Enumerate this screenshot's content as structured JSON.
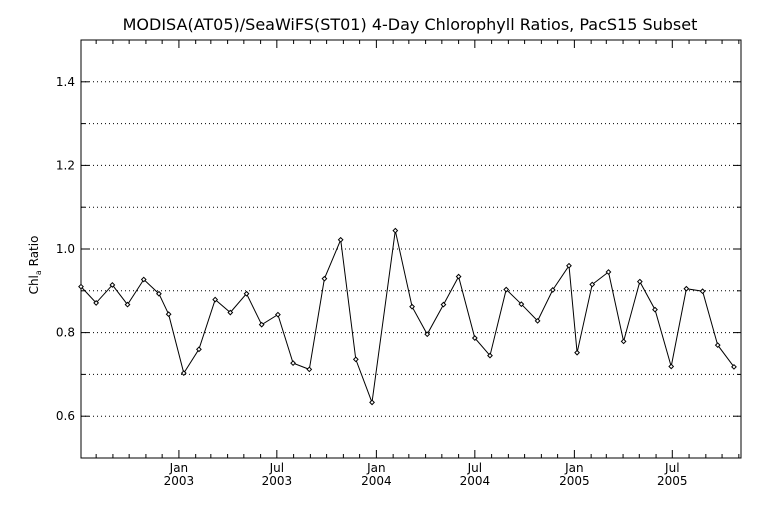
{
  "chart_data": {
    "type": "line",
    "title": "MODISA(AT05)/SeaWiFS(ST01) 4-Day Chlorophyll Ratios, PacS15 Subset",
    "ylabel_main": "Chl",
    "ylabel_sub": "a",
    "ylabel_rest": " Ratio",
    "xlabel": "",
    "ylim": [
      0.5,
      1.5
    ],
    "xlim": [
      "2002-07-04",
      "2005-11-05"
    ],
    "y_ticks": [
      0.6,
      0.8,
      1.0,
      1.2,
      1.4
    ],
    "y_tick_labels": [
      "0.6",
      "0.8",
      "1.0",
      "1.2",
      "1.4"
    ],
    "y_gridlines": [
      0.6,
      0.7,
      0.8,
      0.9,
      1.0,
      1.1,
      1.2,
      1.3,
      1.4
    ],
    "grid": "dotted horizontal",
    "x_ticks": [
      {
        "date": "2003-01-01",
        "month": "Jan",
        "year": "2003"
      },
      {
        "date": "2003-07-01",
        "month": "Jul",
        "year": "2003"
      },
      {
        "date": "2004-01-01",
        "month": "Jan",
        "year": "2004"
      },
      {
        "date": "2004-07-01",
        "month": "Jul",
        "year": "2004"
      },
      {
        "date": "2005-01-01",
        "month": "Jan",
        "year": "2005"
      },
      {
        "date": "2005-07-01",
        "month": "Jul",
        "year": "2005"
      }
    ],
    "x_minor_tick_dates": [
      "2002-08-01",
      "2002-09-01",
      "2002-10-01",
      "2002-11-01",
      "2002-12-01",
      "2003-02-01",
      "2003-03-01",
      "2003-04-01",
      "2003-05-01",
      "2003-06-01",
      "2003-08-01",
      "2003-09-01",
      "2003-10-01",
      "2003-11-01",
      "2003-12-01",
      "2004-02-01",
      "2004-03-01",
      "2004-04-01",
      "2004-05-01",
      "2004-06-01",
      "2004-08-01",
      "2004-09-01",
      "2004-10-01",
      "2004-11-01",
      "2004-12-01",
      "2005-02-01",
      "2005-03-01",
      "2005-04-01",
      "2005-05-01",
      "2005-06-01",
      "2005-08-01",
      "2005-09-01",
      "2005-10-01",
      "2005-11-01"
    ],
    "series": [
      {
        "marker": "diamond",
        "color": "#000000",
        "x": [
          "2002-07-04",
          "2002-08-01",
          "2002-08-31",
          "2002-09-28",
          "2002-10-28",
          "2002-11-25",
          "2002-12-13",
          "2003-01-10",
          "2003-02-07",
          "2003-03-09",
          "2003-04-06",
          "2003-05-06",
          "2003-06-03",
          "2003-07-03",
          "2003-07-31",
          "2003-08-30",
          "2003-09-27",
          "2003-10-27",
          "2003-11-24",
          "2003-12-24",
          "2004-02-05",
          "2004-03-07",
          "2004-04-04",
          "2004-05-04",
          "2004-06-01",
          "2004-07-01",
          "2004-07-29",
          "2004-08-28",
          "2004-09-25",
          "2004-10-25",
          "2004-11-22",
          "2004-12-22",
          "2005-01-06",
          "2005-02-03",
          "2005-03-05",
          "2005-04-02",
          "2005-05-02",
          "2005-05-30",
          "2005-06-29",
          "2005-07-27",
          "2005-08-26",
          "2005-09-23",
          "2005-10-23"
        ],
        "y": [
          0.91,
          0.871,
          0.914,
          0.867,
          0.927,
          0.893,
          0.844,
          0.703,
          0.76,
          0.879,
          0.848,
          0.893,
          0.819,
          0.843,
          0.727,
          0.712,
          0.929,
          1.022,
          0.736,
          0.633,
          1.044,
          0.862,
          0.796,
          0.867,
          0.934,
          0.787,
          0.745,
          0.903,
          0.868,
          0.828,
          0.902,
          0.96,
          0.752,
          0.915,
          0.945,
          0.779,
          0.922,
          0.855,
          0.719,
          0.905,
          0.899,
          0.77,
          0.718
        ]
      }
    ]
  }
}
